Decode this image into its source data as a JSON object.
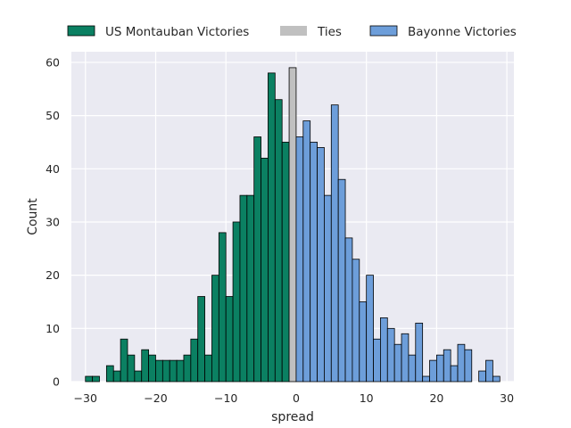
{
  "chart_data": {
    "type": "bar",
    "xlabel": "spread",
    "ylabel": "Count",
    "xlim": [
      -32,
      31
    ],
    "ylim": [
      0,
      62
    ],
    "xticks": [
      -30,
      -20,
      -10,
      0,
      10,
      20,
      30
    ],
    "yticks": [
      0,
      10,
      20,
      30,
      40,
      50,
      60
    ],
    "grid": true,
    "legend_placement": "top",
    "bin_width": 1,
    "series": [
      {
        "name": "US Montauban Victories",
        "color": "#0b8062",
        "bins": [
          [
            -30,
            1
          ],
          [
            -29,
            1
          ],
          [
            -27,
            3
          ],
          [
            -26,
            2
          ],
          [
            -25,
            8
          ],
          [
            -24,
            5
          ],
          [
            -23,
            2
          ],
          [
            -22,
            6
          ],
          [
            -21,
            5
          ],
          [
            -20,
            4
          ],
          [
            -19,
            4
          ],
          [
            -18,
            4
          ],
          [
            -17,
            4
          ],
          [
            -16,
            5
          ],
          [
            -15,
            8
          ],
          [
            -14,
            16
          ],
          [
            -13,
            5
          ],
          [
            -12,
            20
          ],
          [
            -11,
            28
          ],
          [
            -10,
            16
          ],
          [
            -9,
            30
          ],
          [
            -8,
            35
          ],
          [
            -7,
            35
          ],
          [
            -6,
            46
          ],
          [
            -5,
            42
          ],
          [
            -4,
            58
          ],
          [
            -3,
            53
          ],
          [
            -2,
            45
          ]
        ]
      },
      {
        "name": "Ties",
        "color": "#c0c0c0",
        "bins": [
          [
            -1,
            59
          ]
        ]
      },
      {
        "name": "Bayonne Victories",
        "color": "#6d9eda",
        "bins": [
          [
            0,
            46
          ],
          [
            1,
            49
          ],
          [
            2,
            45
          ],
          [
            3,
            44
          ],
          [
            4,
            35
          ],
          [
            5,
            52
          ],
          [
            6,
            38
          ],
          [
            7,
            27
          ],
          [
            8,
            23
          ],
          [
            9,
            15
          ],
          [
            10,
            20
          ],
          [
            11,
            8
          ],
          [
            12,
            12
          ],
          [
            13,
            10
          ],
          [
            14,
            7
          ],
          [
            15,
            9
          ],
          [
            16,
            5
          ],
          [
            17,
            11
          ],
          [
            18,
            1
          ],
          [
            19,
            4
          ],
          [
            20,
            5
          ],
          [
            21,
            6
          ],
          [
            22,
            3
          ],
          [
            23,
            7
          ],
          [
            24,
            6
          ],
          [
            26,
            2
          ],
          [
            27,
            4
          ],
          [
            28,
            1
          ]
        ]
      }
    ]
  }
}
